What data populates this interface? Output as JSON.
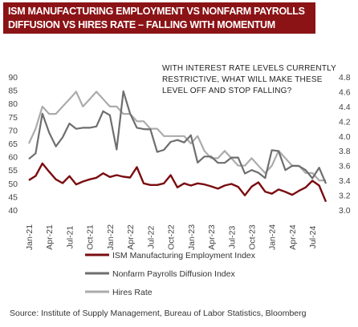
{
  "title": {
    "line1": "ISM MANUFACTURING EMPLOYMENT VS NONFARM PAYROLLS",
    "line2": "DIFFUSION VS HIRES RATE – FALLING WITH MOMENTUM"
  },
  "source": "Source:  Institute  of  Supply Management,  Bureau  of Labor Statistics,  Bloomberg",
  "chart_data": {
    "type": "line",
    "title": "ISM MANUFACTURING EMPLOYMENT VS NONFARM PAYROLLS DIFFUSION VS HIRES RATE – FALLING WITH MOMENTUM",
    "annotation": [
      "WITH INTEREST RATE LEVELS CURRENTLY",
      "RESTRICTIVE, WHAT WILL MAKE THESE",
      "LEVEL OFF AND STOP FALLING?"
    ],
    "x_start": "Jan-21",
    "x_tick_labels": [
      "Jan-21",
      "Apr-21",
      "Jul-21",
      "Oct-21",
      "Jan-22",
      "Apr-22",
      "Jul-22",
      "Oct-22",
      "Jan-23",
      "Apr-23",
      "Jul-23",
      "Oct-23",
      "Jan-24",
      "Apr-24",
      "Jul-24"
    ],
    "y_left_lim": [
      40,
      90
    ],
    "y_left_ticks": [
      "40",
      "45",
      "50",
      "55",
      "60",
      "65",
      "70",
      "75",
      "80",
      "85",
      "90"
    ],
    "y_right_lim": [
      3.0,
      4.8
    ],
    "y_right_ticks": [
      "3.0",
      "3.2",
      "3.4",
      "3.6",
      "3.8",
      "4.0",
      "4.2",
      "4.4",
      "4.6",
      "4.8"
    ],
    "legend_position": "bottom",
    "series": [
      {
        "name": "ISM Manufacturing Employment Index",
        "axis": "left",
        "color": "#7a0c10",
        "values": [
          51.2,
          52.8,
          57.5,
          54.4,
          51.5,
          50.1,
          52.7,
          49.6,
          50.7,
          51.5,
          52.1,
          53.8,
          52.4,
          53.1,
          52.5,
          52.2,
          56.1,
          50.0,
          49.4,
          49.4,
          50.0,
          53.1,
          48.5,
          50.0,
          49.2,
          50.0,
          49.6,
          48.9,
          48.0,
          49.2,
          49.8,
          48.7,
          45.5,
          48.8,
          50.4,
          46.9,
          46.1,
          47.7,
          46.8,
          45.7,
          47.2,
          48.5,
          51.0,
          49.2,
          43.1
        ]
      },
      {
        "name": "Nonfarm Payrolls Diffusion Index",
        "axis": "left",
        "color": "#6e6e6e",
        "values": [
          59.2,
          61.3,
          76.2,
          69.1,
          63.9,
          67.3,
          72.5,
          70.5,
          70.9,
          70.9,
          71.4,
          77.1,
          75.6,
          62.7,
          84.6,
          76.2,
          70.9,
          70.4,
          70.3,
          61.8,
          62.6,
          65.6,
          66.3,
          65.4,
          68.1,
          57.8,
          60.1,
          60.1,
          57.7,
          57.7,
          59.7,
          59.7,
          53.7,
          55.0,
          54.0,
          52.0,
          62.5,
          62.1,
          55.0,
          56.6,
          56.5,
          55.0,
          51.9,
          55.9,
          49.9
        ]
      },
      {
        "name": "Hires Rate",
        "axis": "right",
        "color": "#ababab",
        "values": [
          3.9,
          4.1,
          4.4,
          4.3,
          4.3,
          4.4,
          4.5,
          4.6,
          4.4,
          4.5,
          4.6,
          4.5,
          4.4,
          4.4,
          4.3,
          4.3,
          4.2,
          4.2,
          4.1,
          4.1,
          4.0,
          4.0,
          4.0,
          4.0,
          3.9,
          4.0,
          3.8,
          3.7,
          3.7,
          3.8,
          3.7,
          3.6,
          3.6,
          3.7,
          3.6,
          3.5,
          3.6,
          3.8,
          3.7,
          3.6,
          3.6,
          3.5,
          3.5,
          3.4,
          3.4
        ]
      }
    ]
  }
}
